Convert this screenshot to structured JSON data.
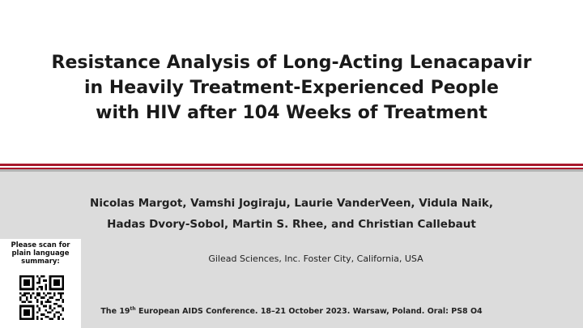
{
  "title": {
    "line1": "Resistance Analysis of Long-Acting Lenacapavir",
    "line2": "in Heavily Treatment-Experienced People",
    "line3": "with HIV after 104 Weeks of Treatment"
  },
  "authors": {
    "line1": "Nicolas Margot, Vamshi Jogiraju, Laurie VanderVeen, Vidula Naik,",
    "line2": "Hadas Dvory-Sobol, Martin S. Rhee, and Christian Callebaut"
  },
  "affiliation": "Gilead Sciences, Inc. Foster City, California, USA",
  "conference": {
    "prefix": "The 19",
    "superscript": "th",
    "suffix": " European AIDS Conference. 18–21 October 2023. Warsaw, Poland. Oral: PS8 O4"
  },
  "qr": {
    "label_line1": "Please scan for",
    "label_line2": "plain language",
    "label_line3": "summary:",
    "icon": "qr-code-icon"
  },
  "colors": {
    "accent_red": "#a8182c",
    "band_grey": "#dcdcdc",
    "rule_grey": "#b3b3b3"
  }
}
